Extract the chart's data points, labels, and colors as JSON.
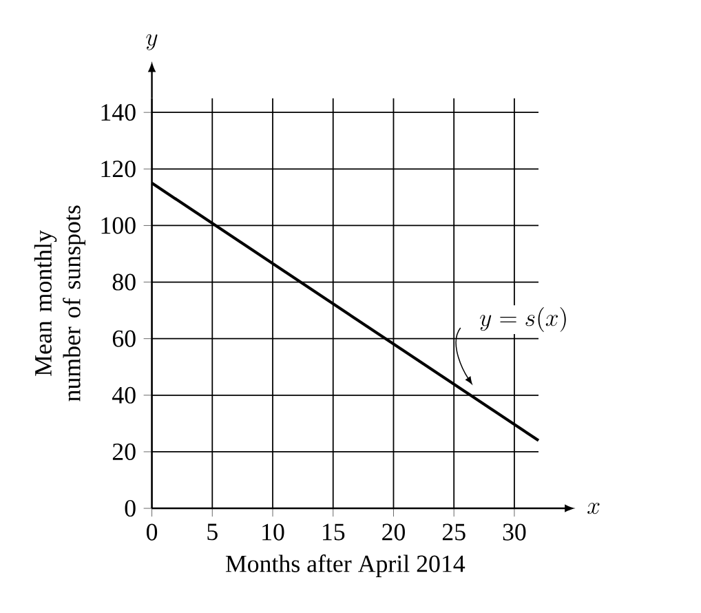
{
  "chart_data": {
    "type": "line",
    "xlabel": "Months after April 2014",
    "ylabel": "Mean monthly number of sunspots",
    "x": [
      0,
      32
    ],
    "series": [
      {
        "color": "#000000",
        "values": [
          115,
          24
        ]
      }
    ],
    "xlim": [
      0,
      32
    ],
    "ylim": [
      0,
      145
    ],
    "xticks": [
      0,
      5,
      10,
      15,
      20,
      25,
      30
    ],
    "yticks": [
      0,
      20,
      40,
      60,
      80,
      100,
      120,
      140
    ],
    "grid": true,
    "annotations": [
      "x",
      "y",
      "y = s(x)"
    ]
  }
}
